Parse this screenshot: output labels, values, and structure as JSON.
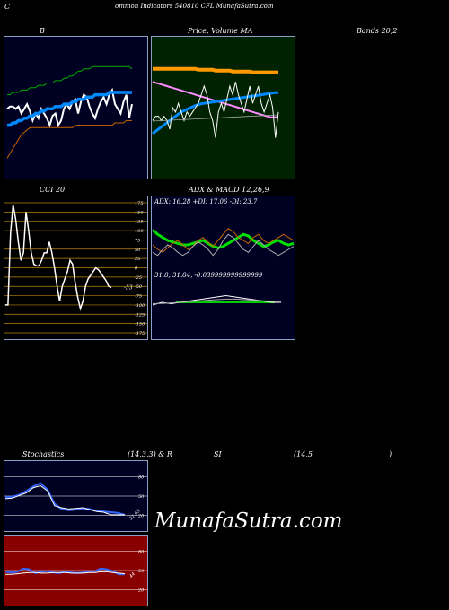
{
  "header": {
    "c_letter": "C",
    "title": "ommon  Indicators 540810  CFL  MunafaSutra.com"
  },
  "labels": {
    "bollinger_left": "B",
    "price_volume_ma": "Price,  Volume  MA",
    "bands_right": "Bands 20,2",
    "cci": "CCI 20",
    "adx_macd": "ADX   &  MACD 12,26,9",
    "stoch_a": "Stochastics",
    "stoch_b": "(14,3,3) & R",
    "stoch_c": "SI",
    "stoch_d": "(14,5",
    "stoch_e": ")"
  },
  "watermark": "MunafaSutra.com",
  "colors": {
    "dark_navy": "#000022",
    "dark_green": "#002200",
    "cci_bg": "#000000",
    "rsi_bg": "#880000",
    "border": "#8aa0c8"
  },
  "chart_data": [
    {
      "id": "bollinger",
      "type": "line",
      "x": [
        1,
        2,
        3,
        4,
        5,
        6,
        7,
        8,
        9,
        10,
        11,
        12,
        13,
        14,
        15,
        16,
        17,
        18,
        19,
        20,
        21,
        22,
        23,
        24,
        25,
        26,
        27,
        28,
        29,
        30,
        31,
        32,
        33,
        34,
        35,
        36,
        37,
        38,
        39,
        40,
        41,
        42,
        43,
        44,
        45
      ],
      "series": [
        {
          "color": "#ffffff",
          "values": [
            62,
            63,
            63,
            62,
            63,
            60,
            62,
            64,
            61,
            57,
            60,
            58,
            62,
            60,
            58,
            55,
            59,
            60,
            55,
            57,
            62,
            64,
            62,
            65,
            66,
            60,
            65,
            68,
            67,
            63,
            60,
            58,
            62,
            65,
            67,
            64,
            68,
            70,
            64,
            62,
            60,
            65,
            68,
            58,
            64
          ]
        },
        {
          "color": "#0088ff",
          "values": [
            55,
            55,
            56,
            56,
            57,
            57,
            58,
            58,
            59,
            59,
            60,
            60,
            61,
            61,
            62,
            62,
            62,
            63,
            63,
            63,
            64,
            64,
            64,
            65,
            65,
            66,
            66,
            66,
            67,
            67,
            67,
            68,
            68,
            68,
            68,
            68,
            69,
            69,
            69,
            69,
            69,
            69,
            69,
            69,
            69
          ]
        },
        {
          "color": "#00aa00",
          "values": [
            68,
            68,
            69,
            69,
            69,
            70,
            70,
            70,
            71,
            71,
            71,
            72,
            72,
            72,
            73,
            73,
            73,
            74,
            74,
            74,
            75,
            75,
            76,
            76,
            77,
            78,
            78,
            79,
            79,
            79,
            80,
            80,
            80,
            80,
            80,
            80,
            80,
            80,
            80,
            80,
            80,
            80,
            80,
            80,
            79
          ]
        },
        {
          "color": "#cc6600",
          "values": [
            41,
            43,
            45,
            47,
            49,
            51,
            52,
            53,
            54,
            54,
            54,
            54,
            54,
            54,
            54,
            54,
            54,
            54,
            54,
            54,
            54,
            54,
            54,
            54,
            55,
            55,
            55,
            55,
            55,
            55,
            55,
            55,
            55,
            55,
            55,
            55,
            55,
            55,
            56,
            56,
            56,
            56,
            57,
            57,
            57
          ]
        }
      ]
    },
    {
      "id": "price_ma",
      "type": "line",
      "x": [
        1,
        2,
        3,
        4,
        5,
        6,
        7,
        8,
        9,
        10,
        11,
        12,
        13,
        14,
        15,
        16,
        17,
        18,
        19,
        20,
        21,
        22,
        23,
        24,
        25,
        26,
        27,
        28,
        29,
        30,
        31,
        32,
        33,
        34,
        35,
        36,
        37,
        38,
        39,
        40,
        41,
        42,
        43,
        44,
        45
      ],
      "series": [
        {
          "color": "#ff9900",
          "values": [
            74,
            74,
            74,
            74,
            74,
            74,
            74,
            74,
            74,
            74,
            74,
            74,
            74,
            74,
            74,
            74,
            73.8,
            73.8,
            73.8,
            73.8,
            73.8,
            73.8,
            73.6,
            73.6,
            73.6,
            73.6,
            73.6,
            73.6,
            73.4,
            73.4,
            73.4,
            73.4,
            73.4,
            73.4,
            73.4,
            73.2,
            73.2,
            73.2,
            73.2,
            73.2,
            73.2,
            73.2,
            73.2,
            73.2,
            73.2
          ]
        },
        {
          "color": "#ff88ff",
          "values": [
            71,
            70.8,
            70.6,
            70.4,
            70.2,
            70,
            69.8,
            69.6,
            69.4,
            69.2,
            69,
            68.8,
            68.6,
            68.4,
            68.2,
            68,
            67.8,
            67.6,
            67.4,
            67.2,
            67,
            66.8,
            66.6,
            66.4,
            66.2,
            66,
            65.8,
            65.6,
            65.4,
            65.2,
            65,
            64.8,
            64.6,
            64.4,
            64.2,
            64,
            63.8,
            63.6,
            63.4,
            63.2,
            63,
            62.8,
            62.8,
            62.8,
            62.8
          ]
        },
        {
          "color": "#0088ff",
          "values": [
            59,
            59.5,
            60,
            60.5,
            61,
            61.5,
            62,
            62.5,
            63,
            63.5,
            64,
            64.3,
            64.6,
            64.9,
            65.2,
            65.5,
            65.7,
            65.9,
            66,
            66.1,
            66.2,
            66.3,
            66.4,
            66.5,
            66.6,
            66.7,
            66.8,
            66.9,
            67,
            67.1,
            67.2,
            67.3,
            67.4,
            67.5,
            67.6,
            67.7,
            67.8,
            67.9,
            68,
            68.1,
            68.2,
            68.3,
            68.4,
            68.5,
            68.5
          ]
        },
        {
          "color": "#ffffff",
          "values": [
            62,
            63,
            63,
            62,
            63,
            62,
            60,
            65,
            64,
            66,
            64,
            62,
            64,
            63,
            64,
            65,
            66,
            68,
            70,
            68,
            64,
            62,
            58,
            64,
            66,
            64,
            67,
            70,
            68,
            71,
            68,
            66,
            64,
            67,
            70,
            66,
            68,
            70,
            66,
            64,
            66,
            68,
            65,
            58,
            64
          ]
        }
      ]
    },
    {
      "id": "cci",
      "type": "line",
      "x": [
        1,
        2,
        3,
        4,
        5,
        6,
        7,
        8,
        9,
        10,
        11,
        12,
        13,
        14,
        15,
        16,
        17,
        18,
        19,
        20,
        21,
        22,
        23,
        24,
        25,
        26,
        27,
        28,
        29,
        30,
        31,
        32,
        33,
        34,
        35,
        36,
        37,
        38,
        39,
        40,
        41,
        42
      ],
      "ylim": [
        -175,
        175
      ],
      "ticks": [
        175,
        150,
        125,
        100,
        75,
        50,
        25,
        0,
        -25,
        -50,
        -75,
        -100,
        -125,
        -150,
        -175
      ],
      "last_label": "-53",
      "series": [
        {
          "color": "#ffffff",
          "values": [
            -100,
            -100,
            95,
            170,
            130,
            70,
            20,
            40,
            150,
            100,
            40,
            10,
            5,
            5,
            20,
            40,
            40,
            70,
            40,
            0,
            -50,
            -90,
            -50,
            -30,
            -10,
            20,
            10,
            -40,
            -80,
            -110,
            -90,
            -50,
            -30,
            -20,
            -10,
            0,
            -5,
            -15,
            -25,
            -35,
            -50,
            -53
          ]
        }
      ]
    },
    {
      "id": "adx",
      "type": "line",
      "readout": "ADX: 16.28  +DI: 17.06  -DI: 23.7",
      "series": [
        {
          "color": "#00dd00",
          "values": [
            65,
            62,
            60,
            58,
            57,
            56,
            55,
            55,
            56,
            57,
            58,
            56,
            54,
            53,
            54,
            56,
            58,
            60,
            62,
            61,
            58,
            56,
            54,
            55,
            57,
            58,
            56,
            55,
            56
          ]
        },
        {
          "color": "#cc6600",
          "values": [
            55,
            52,
            50,
            53,
            56,
            58,
            55,
            52,
            54,
            58,
            60,
            57,
            54,
            58,
            62,
            66,
            64,
            60,
            58,
            56,
            60,
            62,
            58,
            56,
            58,
            60,
            62,
            60,
            58
          ]
        },
        {
          "color": "#aaaaaa",
          "values": [
            50,
            48,
            52,
            55,
            53,
            50,
            48,
            50,
            54,
            57,
            55,
            52,
            48,
            52,
            58,
            62,
            60,
            56,
            52,
            50,
            54,
            58,
            55,
            52,
            50,
            48,
            50,
            52,
            54
          ]
        }
      ]
    },
    {
      "id": "macd",
      "type": "line",
      "readout": "31.8,  31.84,  -0.039999999999999",
      "series": [
        {
          "color": "#ffffff",
          "values": [
            31.7,
            31.8,
            31.75,
            31.8,
            31.85,
            31.9,
            31.95,
            32.0,
            32.05,
            32.0,
            31.95,
            31.9,
            31.85,
            31.8,
            31.8
          ]
        },
        {
          "color": "#aaaaaa",
          "values": [
            31.75,
            31.76,
            31.78,
            31.8,
            31.82,
            31.85,
            31.88,
            31.9,
            31.92,
            31.92,
            31.9,
            31.88,
            31.86,
            31.84,
            31.84
          ]
        }
      ]
    },
    {
      "id": "stochastics",
      "type": "line",
      "ticks": [
        80,
        50,
        20
      ],
      "last_label": "21.03",
      "series": [
        {
          "color": "#3366ff",
          "values": [
            48,
            49,
            52,
            58,
            65,
            70,
            60,
            38,
            30,
            28,
            29,
            31,
            30,
            27,
            26,
            25,
            24,
            21
          ]
        },
        {
          "color": "#ffffff",
          "values": [
            46,
            47,
            51,
            55,
            63,
            66,
            58,
            35,
            32,
            30,
            31,
            32,
            29,
            26,
            25,
            21,
            21,
            21
          ]
        }
      ]
    },
    {
      "id": "rsi",
      "type": "line",
      "ticks": [
        80,
        50,
        20
      ],
      "last_label": "44",
      "series": [
        {
          "color": "#3366ff",
          "values": [
            48,
            47,
            48,
            53,
            52,
            46,
            48,
            49,
            47,
            46,
            48,
            47,
            46,
            47,
            48,
            49,
            53,
            52,
            49,
            44,
            44
          ]
        },
        {
          "color": "#ffffff",
          "values": [
            44,
            44,
            45,
            46,
            47,
            47,
            46,
            46,
            47,
            47,
            47,
            46,
            46,
            46,
            47,
            47,
            48,
            48,
            47,
            46,
            45
          ]
        }
      ]
    }
  ]
}
